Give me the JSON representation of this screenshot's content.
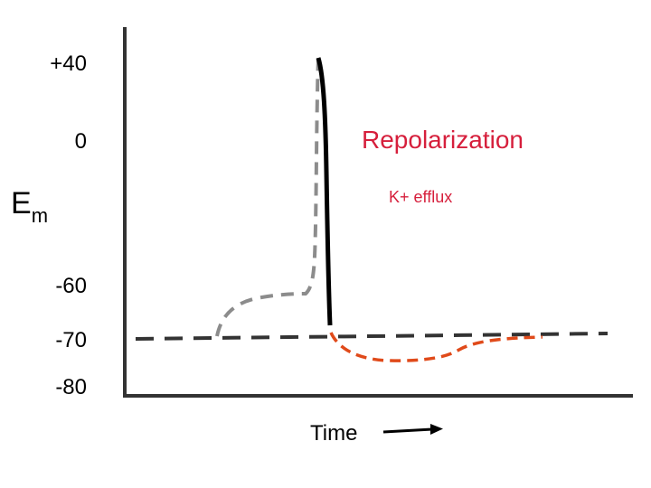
{
  "axis": {
    "ticks": [
      "+40",
      "0",
      "-60",
      "-70",
      "-80"
    ],
    "y_label_main": "E",
    "y_label_sub": "m",
    "x_label": "Time"
  },
  "annotations": {
    "phase_label": "Repolarization",
    "phase_sublabel": "K+ efflux"
  },
  "colors": {
    "axis": "#333333",
    "resting_line": "#333333",
    "depolarization_trace": "#8c8c8c",
    "repolarization_trace": "#000000",
    "hyperpolarization_trace": "#e04a1a",
    "phase_text": "#d61f3c",
    "arrow": "#000000"
  },
  "icons": {
    "time_arrow": "right-arrow-icon"
  }
}
